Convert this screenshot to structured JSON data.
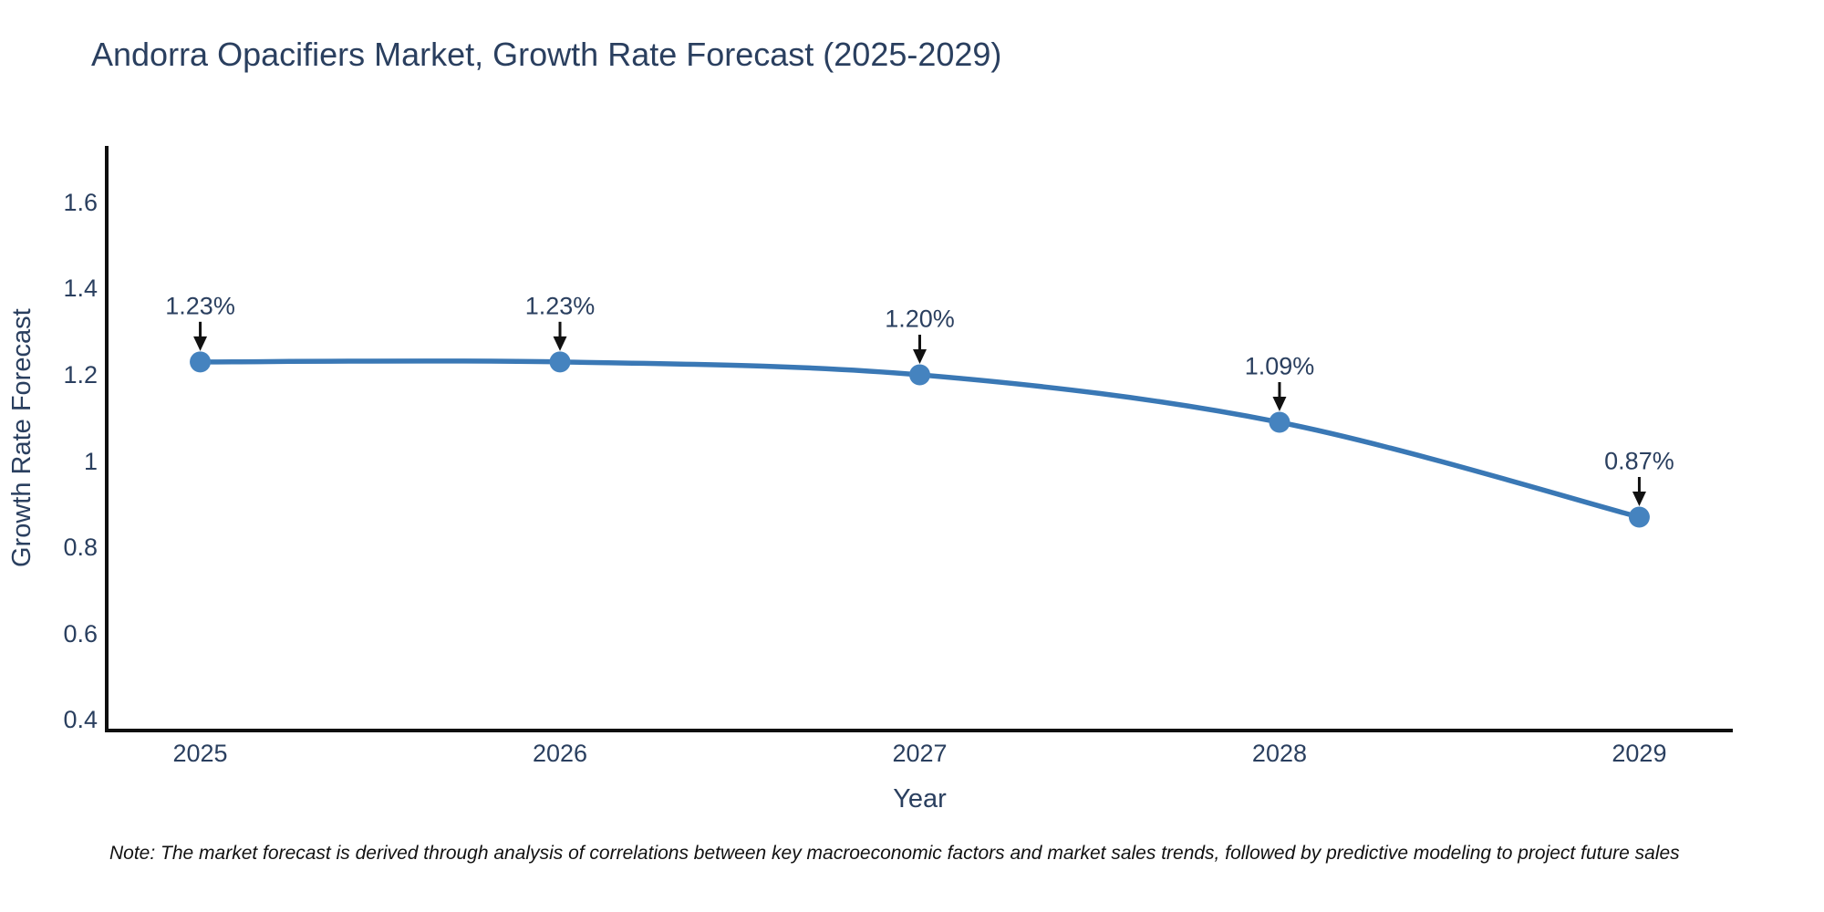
{
  "figure": {
    "title": "Andorra Opacifiers Market, Growth Rate Forecast (2025-2029)",
    "note": "Note: The market forecast is derived through analysis of correlations between key macroeconomic factors and market sales trends, followed by predictive modeling to project future sales"
  },
  "chart_data": {
    "type": "line",
    "title": "Andorra Opacifiers Market, Growth Rate Forecast (2025-2029)",
    "xlabel": "Year",
    "ylabel": "Growth Rate Forecast",
    "x": [
      2025,
      2026,
      2027,
      2028,
      2029
    ],
    "x_tick_labels": [
      "2025",
      "2026",
      "2027",
      "2028",
      "2029"
    ],
    "series": [
      {
        "name": "Growth Rate Forecast",
        "values": [
          1.23,
          1.23,
          1.2,
          1.09,
          0.87
        ]
      }
    ],
    "point_labels": [
      "1.23%",
      "1.23%",
      "1.20%",
      "1.09%",
      "0.87%"
    ],
    "y_ticks": [
      0.4,
      0.6,
      0.8,
      1,
      1.2,
      1.4,
      1.6
    ],
    "y_tick_labels": [
      "0.4",
      "0.6",
      "0.8",
      "1",
      "1.2",
      "1.4",
      "1.6"
    ],
    "ylim": [
      0.375,
      1.731
    ],
    "xlim": [
      2024.74,
      2029.26
    ],
    "grid": false,
    "legend": "none",
    "line_shape": "spline",
    "annotation_arrows": true,
    "colors": {
      "line": "#3a78b5",
      "marker": "#4583bf",
      "axis": "#0f0f0f",
      "text": "#2a3f5f",
      "arrow": "#111111",
      "background": "#ffffff"
    }
  }
}
